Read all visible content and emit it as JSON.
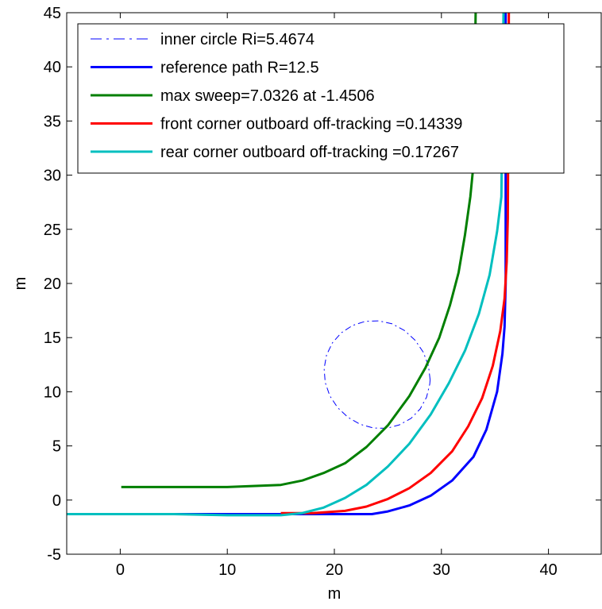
{
  "chart_data": {
    "type": "line",
    "title": "",
    "xlabel": "m",
    "ylabel": "m",
    "xlim": [
      -5,
      45
    ],
    "ylim": [
      -5,
      45
    ],
    "xticks": [
      0,
      10,
      20,
      30,
      40
    ],
    "yticks": [
      -5,
      0,
      5,
      10,
      15,
      20,
      25,
      30,
      35,
      40,
      45
    ],
    "grid": false,
    "legend_position": "top-left",
    "series": [
      {
        "name": "inner circle Ri=5.4674",
        "color": "#0000ff",
        "style": "dashdot",
        "x": [
          28.95,
          28.79,
          28.31,
          27.55,
          26.56,
          25.41,
          24.16,
          22.89,
          21.7,
          20.65,
          19.82,
          19.27,
          19.04,
          19.15,
          19.58,
          20.31,
          21.27,
          22.4,
          23.63,
          24.9,
          26.1,
          27.17,
          28.02,
          28.61,
          28.91,
          28.95
        ],
        "y": [
          11.1,
          12.4,
          13.65,
          14.75,
          15.65,
          16.27,
          16.55,
          16.5,
          16.12,
          15.45,
          14.52,
          13.4,
          12.15,
          10.85,
          9.62,
          8.53,
          7.65,
          7.0,
          6.66,
          6.63,
          6.95,
          7.55,
          8.42,
          9.5,
          10.7,
          11.1
        ]
      },
      {
        "name": "reference path R=12.5",
        "color": "#0000ff",
        "style": "solid",
        "x": [
          -5,
          10,
          20,
          23.5,
          25,
          27,
          29,
          31,
          33,
          34.2,
          35.2,
          35.7,
          35.9,
          36.0,
          36.0
        ],
        "y": [
          -1.3,
          -1.3,
          -1.3,
          -1.3,
          -1.05,
          -0.5,
          0.4,
          1.8,
          4.0,
          6.5,
          10.0,
          13.5,
          16.0,
          20.0,
          45
        ]
      },
      {
        "name": "max sweep=7.0326 at -1.4506",
        "color": "#007f00",
        "style": "solid",
        "x": [
          0.1,
          5,
          10,
          15,
          17,
          19,
          21,
          23,
          25,
          27,
          28.5,
          29.8,
          30.8,
          31.6,
          32.2,
          32.7,
          33.0,
          33.2
        ],
        "y": [
          1.2,
          1.2,
          1.2,
          1.4,
          1.8,
          2.5,
          3.4,
          4.9,
          6.9,
          9.6,
          12.2,
          15.0,
          18.0,
          21.0,
          24.5,
          28.0,
          31.0,
          45
        ]
      },
      {
        "name": "front corner outboard off-tracking =0.14339",
        "color": "#ff0000",
        "style": "solid",
        "x": [
          15,
          18,
          21,
          23,
          25,
          27,
          29,
          31,
          32.5,
          33.8,
          34.8,
          35.5,
          35.9,
          36.1,
          36.2,
          36.3
        ],
        "y": [
          -1.2,
          -1.2,
          -1.0,
          -0.6,
          0.1,
          1.1,
          2.5,
          4.5,
          6.8,
          9.4,
          12.4,
          15.6,
          18.6,
          22.0,
          26.0,
          45
        ]
      },
      {
        "name": "rear corner outboard off-tracking =0.17267",
        "color": "#00bfbf",
        "style": "solid",
        "x": [
          -5,
          5,
          10,
          15,
          17,
          19,
          21,
          23,
          25,
          27,
          29,
          30.7,
          32.2,
          33.5,
          34.5,
          35.2,
          35.6,
          35.8
        ],
        "y": [
          -1.3,
          -1.3,
          -1.4,
          -1.4,
          -1.2,
          -0.7,
          0.2,
          1.4,
          3.1,
          5.2,
          7.9,
          10.8,
          13.8,
          17.2,
          20.8,
          24.8,
          28.0,
          45
        ]
      }
    ]
  }
}
